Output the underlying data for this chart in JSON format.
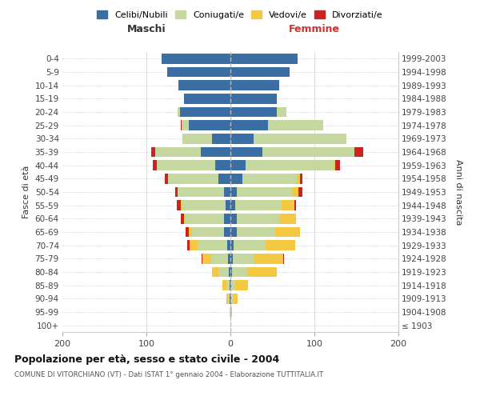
{
  "age_groups": [
    "100+",
    "95-99",
    "90-94",
    "85-89",
    "80-84",
    "75-79",
    "70-74",
    "65-69",
    "60-64",
    "55-59",
    "50-54",
    "45-49",
    "40-44",
    "35-39",
    "30-34",
    "25-29",
    "20-24",
    "15-19",
    "10-14",
    "5-9",
    "0-4"
  ],
  "birth_years": [
    "≤ 1903",
    "1904-1908",
    "1909-1913",
    "1914-1918",
    "1919-1923",
    "1924-1928",
    "1929-1933",
    "1934-1938",
    "1939-1943",
    "1944-1948",
    "1949-1953",
    "1954-1958",
    "1959-1963",
    "1964-1968",
    "1969-1973",
    "1974-1978",
    "1979-1983",
    "1984-1988",
    "1989-1993",
    "1994-1998",
    "1999-2003"
  ],
  "colors": {
    "celibi": "#3a6ea5",
    "coniugati": "#c5d8a0",
    "vedovi": "#f5c842",
    "divorziati": "#cc2222"
  },
  "maschi_celibi": [
    0,
    0,
    1,
    1,
    2,
    3,
    4,
    8,
    8,
    6,
    8,
    14,
    18,
    35,
    22,
    50,
    60,
    55,
    62,
    75,
    82
  ],
  "maschi_coniugati": [
    0,
    1,
    2,
    4,
    12,
    20,
    35,
    38,
    45,
    52,
    55,
    60,
    70,
    55,
    35,
    8,
    3,
    0,
    0,
    0,
    0
  ],
  "maschi_vedovi": [
    0,
    0,
    2,
    5,
    8,
    10,
    10,
    4,
    2,
    1,
    0,
    0,
    0,
    0,
    0,
    0,
    0,
    0,
    0,
    0,
    0
  ],
  "maschi_divorziati": [
    0,
    0,
    0,
    0,
    0,
    1,
    2,
    3,
    4,
    5,
    3,
    4,
    4,
    4,
    0,
    1,
    0,
    0,
    0,
    0,
    0
  ],
  "femmine_celibi": [
    0,
    0,
    1,
    1,
    2,
    3,
    4,
    8,
    8,
    6,
    8,
    14,
    18,
    38,
    28,
    45,
    55,
    55,
    58,
    70,
    80
  ],
  "femmine_coniugati": [
    0,
    1,
    3,
    5,
    18,
    25,
    38,
    45,
    50,
    55,
    65,
    65,
    105,
    110,
    110,
    65,
    12,
    0,
    0,
    0,
    0
  ],
  "femmine_vedovi": [
    0,
    1,
    5,
    15,
    35,
    35,
    35,
    30,
    20,
    15,
    8,
    4,
    2,
    0,
    0,
    0,
    0,
    0,
    0,
    0,
    0
  ],
  "femmine_divorziati": [
    0,
    0,
    0,
    0,
    0,
    1,
    0,
    0,
    0,
    2,
    5,
    3,
    5,
    10,
    0,
    0,
    0,
    0,
    0,
    0,
    0
  ],
  "title": "Popolazione per età, sesso e stato civile - 2004",
  "subtitle": "COMUNE DI VITORCHIANO (VT) - Dati ISTAT 1° gennaio 2004 - Elaborazione TUTTITALIA.IT",
  "label_maschi": "Maschi",
  "label_femmine": "Femmine",
  "ylabel_left": "Fasce di età",
  "ylabel_right": "Anni di nascita",
  "legend_labels": [
    "Celibi/Nubili",
    "Coniugati/e",
    "Vedovi/e",
    "Divorziati/e"
  ],
  "xlim": 200,
  "background_color": "#ffffff",
  "grid_color": "#cccccc"
}
